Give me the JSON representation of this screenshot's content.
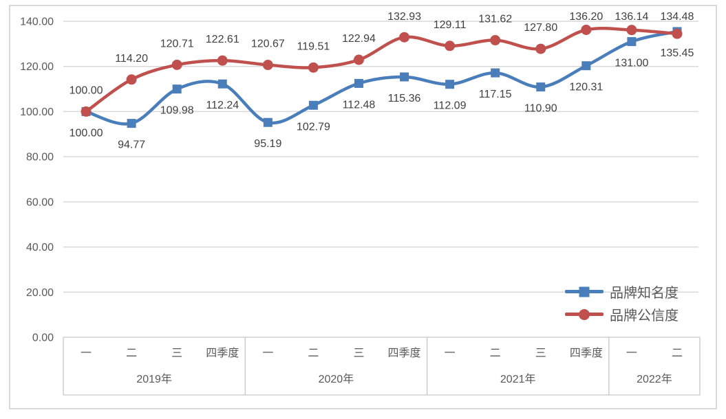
{
  "chart_data": {
    "type": "line",
    "x_groups": [
      {
        "year": "2019年",
        "quarters": [
          "一",
          "二",
          "三",
          "四季度"
        ]
      },
      {
        "year": "2020年",
        "quarters": [
          "一",
          "二",
          "三",
          "四季度"
        ]
      },
      {
        "year": "2021年",
        "quarters": [
          "一",
          "二",
          "三",
          "四季度"
        ]
      },
      {
        "year": "2022年",
        "quarters": [
          "一",
          "二"
        ]
      }
    ],
    "series": [
      {
        "name": "品牌知名度",
        "color": "#4A7EBB",
        "marker": "square",
        "values": [
          100.0,
          94.77,
          109.98,
          112.24,
          95.19,
          102.79,
          112.48,
          115.36,
          112.09,
          117.15,
          110.9,
          120.31,
          131.0,
          135.45
        ]
      },
      {
        "name": "品牌公信度",
        "color": "#C0504D",
        "marker": "circle",
        "values": [
          100.0,
          114.2,
          120.71,
          122.61,
          120.67,
          119.51,
          122.94,
          132.93,
          129.11,
          131.62,
          127.8,
          136.2,
          136.14,
          134.48
        ]
      }
    ],
    "y_ticks": [
      "0.00",
      "20.00",
      "40.00",
      "60.00",
      "80.00",
      "100.00",
      "120.00",
      "140.00"
    ],
    "ylim": [
      0,
      140
    ],
    "grid": "horizontal",
    "legend_position": "right-lower",
    "colors": {
      "gridline": "#D9D9D9",
      "outer_border": "#D9D9D9",
      "axis_table_border": "#C6C6C6",
      "axis_text": "#595959",
      "data_label_text": "#404040"
    },
    "title": "",
    "xlabel": "",
    "ylabel": ""
  }
}
